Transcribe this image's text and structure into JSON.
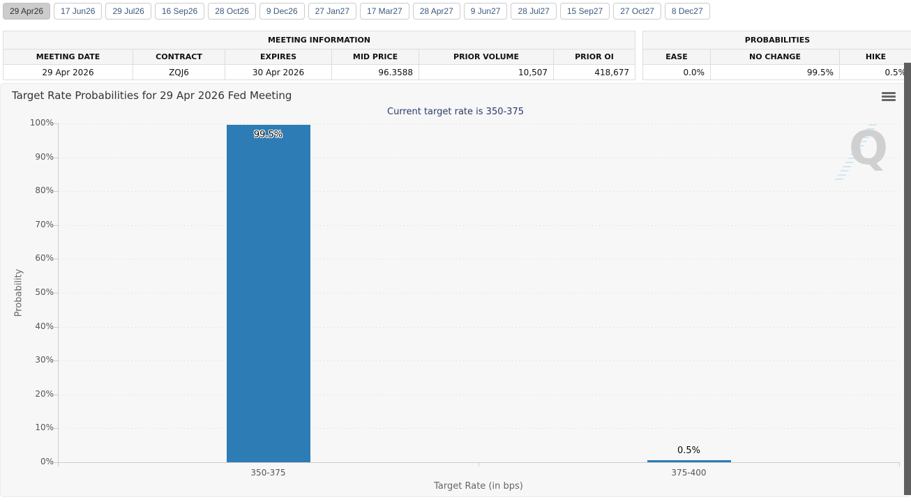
{
  "tabs": [
    {
      "label": "29 Apr26",
      "selected": true
    },
    {
      "label": "17 Jun26",
      "selected": false
    },
    {
      "label": "29 Jul26",
      "selected": false
    },
    {
      "label": "16 Sep26",
      "selected": false
    },
    {
      "label": "28 Oct26",
      "selected": false
    },
    {
      "label": "9 Dec26",
      "selected": false
    },
    {
      "label": "27 Jan27",
      "selected": false
    },
    {
      "label": "17 Mar27",
      "selected": false
    },
    {
      "label": "28 Apr27",
      "selected": false
    },
    {
      "label": "9 Jun27",
      "selected": false
    },
    {
      "label": "28 Jul27",
      "selected": false
    },
    {
      "label": "15 Sep27",
      "selected": false
    },
    {
      "label": "27 Oct27",
      "selected": false
    },
    {
      "label": "8 Dec27",
      "selected": false
    }
  ],
  "meeting_info": {
    "title": "MEETING INFORMATION",
    "columns": [
      "MEETING DATE",
      "CONTRACT",
      "EXPIRES",
      "MID PRICE",
      "PRIOR VOLUME",
      "PRIOR OI"
    ],
    "row": [
      "29 Apr 2026",
      "ZQJ6",
      "30 Apr 2026",
      "96.3588",
      "10,507",
      "418,677"
    ]
  },
  "probabilities": {
    "title": "PROBABILITIES",
    "columns": [
      "EASE",
      "NO CHANGE",
      "HIKE"
    ],
    "row": [
      "0.0%",
      "99.5%",
      "0.5%"
    ]
  },
  "chart_data": {
    "type": "bar",
    "title": "Target Rate Probabilities for 29 Apr 2026 Fed Meeting",
    "subtitle": "Current target rate is 350-375",
    "categories": [
      "350-375",
      "375-400"
    ],
    "values": [
      99.5,
      0.5
    ],
    "value_labels": [
      "99.5%",
      "0.5%"
    ],
    "xlabel": "Target Rate (in bps)",
    "ylabel": "Probability",
    "ylim": [
      0,
      100
    ],
    "ytick_step": 10,
    "ytick_suffix": "%",
    "grid": "horizontal-dotted",
    "legend": "none",
    "bar_color": "#2d7cb5"
  },
  "icons": {
    "menu_icon": "hamburger",
    "watermark_letter": "Q"
  },
  "colors": {
    "bar": "#2d7cb5",
    "subtitle_text": "#2c3a6b",
    "tab_text": "#3b5a7d",
    "panel_bg": "#f7f7f7"
  }
}
